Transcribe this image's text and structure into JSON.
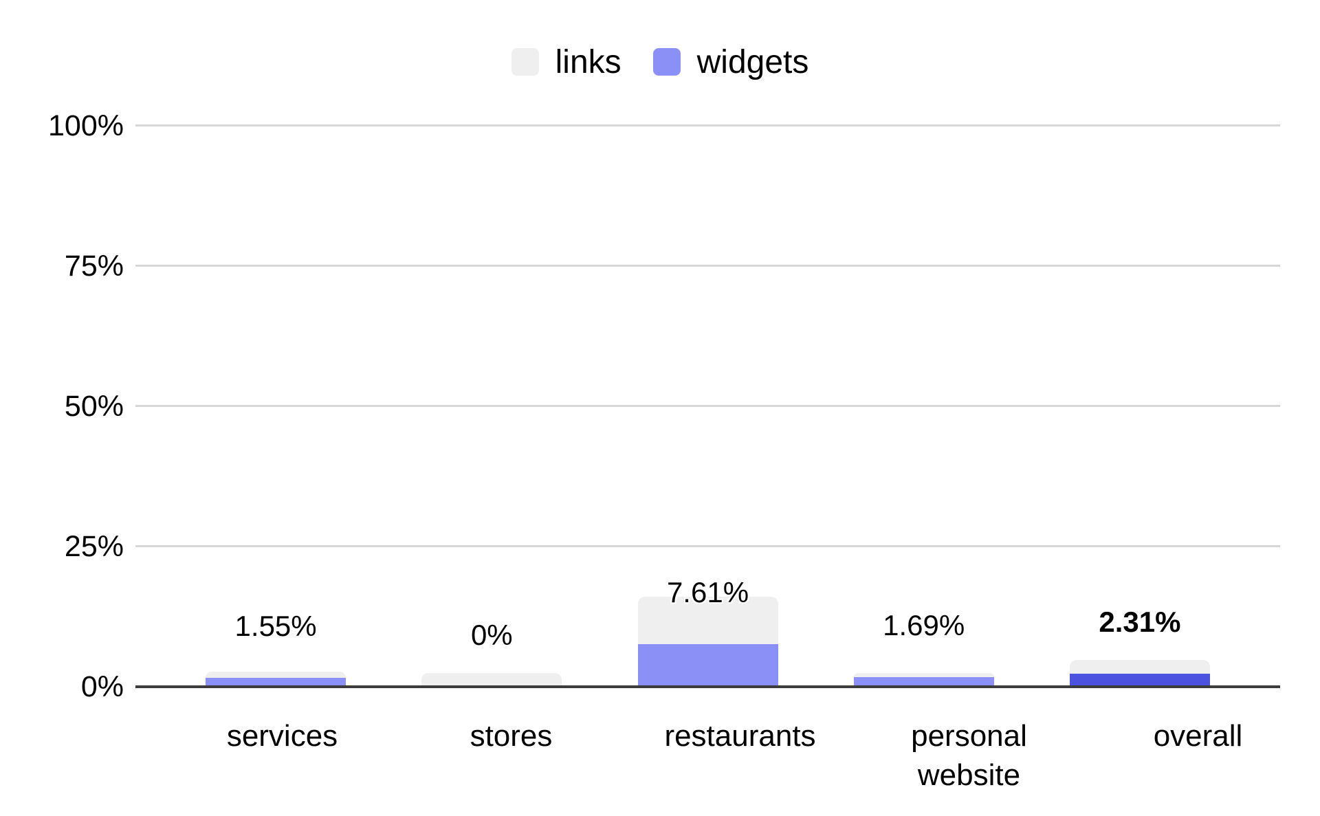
{
  "chart_data": {
    "type": "bar",
    "stacked": true,
    "title": "",
    "xlabel": "",
    "ylabel": "",
    "categories": [
      "services",
      "stores",
      "restaurants",
      "personal website",
      "overall"
    ],
    "series": [
      {
        "name": "links",
        "color": "#EFEFEF",
        "values": [
          1.2,
          2.4,
          8.4,
          0.8,
          2.5
        ],
        "values_estimated_from_gridlines": true
      },
      {
        "name": "widgets",
        "color": "#8A90F5",
        "values": [
          1.55,
          0,
          7.61,
          1.69,
          2.31
        ],
        "highlight_index": 4,
        "highlight_color": "#4A52DF"
      }
    ],
    "data_labels": {
      "labels_series": "widgets",
      "texts": [
        "1.55%",
        "0%",
        "7.61%",
        "1.69%",
        "2.31%"
      ],
      "bold_index": 4
    },
    "y_axis": {
      "ticks": [
        "0%",
        "25%",
        "50%",
        "75%",
        "100%"
      ],
      "tick_values": [
        0,
        25,
        50,
        75,
        100
      ],
      "ylim": [
        0,
        100
      ]
    },
    "grid": true,
    "legend_position": "top",
    "colors": {
      "background": "#FFFFFF",
      "gridline": "#D6D6D6",
      "axis_line": "#3C3C3C",
      "text": "#000000"
    }
  }
}
